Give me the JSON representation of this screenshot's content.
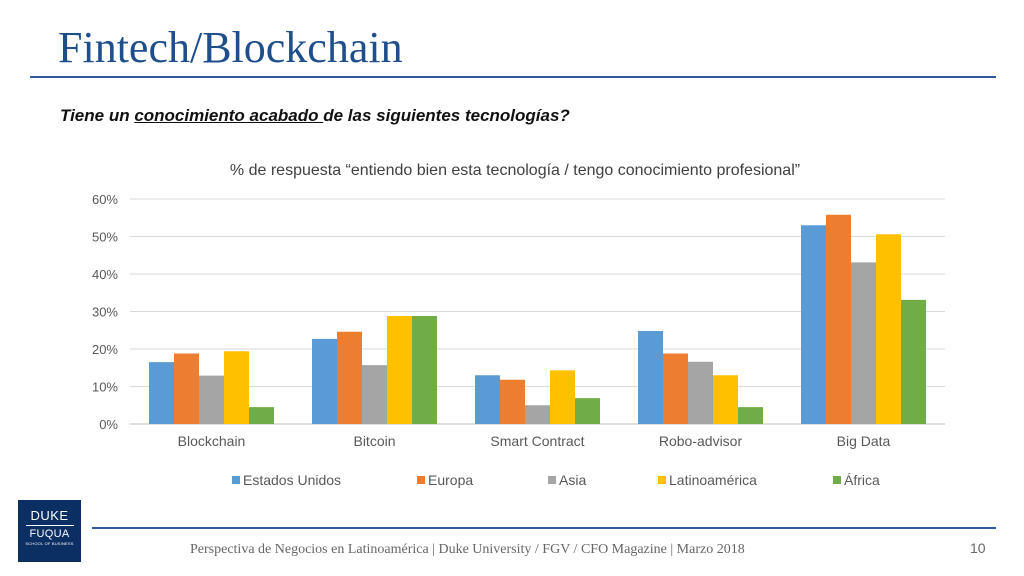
{
  "slide": {
    "title": "Fintech/Blockchain",
    "question_before": "Tiene un ",
    "question_underlined": "conocimiento acabado ",
    "question_after": "de las siguientes tecnologías?"
  },
  "chart_data": {
    "type": "bar",
    "title": "% de respuesta “entiendo bien esta tecnología / tengo conocimiento profesional”",
    "categories": [
      "Blockchain",
      "Bitcoin",
      "Smart Contract",
      "Robo-advisor",
      "Big Data"
    ],
    "series": [
      {
        "name": "Estados Unidos",
        "color": "#5b9bd5",
        "values": [
          16.5,
          22.7,
          13.0,
          24.8,
          53.0
        ]
      },
      {
        "name": "Europa",
        "color": "#ed7d31",
        "values": [
          18.8,
          24.6,
          11.8,
          18.8,
          55.8
        ]
      },
      {
        "name": "Asia",
        "color": "#a5a5a5",
        "values": [
          12.9,
          15.7,
          5.0,
          16.6,
          43.1
        ]
      },
      {
        "name": "Latinoamérica",
        "color": "#ffc000",
        "values": [
          19.4,
          28.8,
          14.3,
          13.0,
          50.6
        ]
      },
      {
        "name": "África",
        "color": "#70ad47",
        "values": [
          4.5,
          28.8,
          6.9,
          4.5,
          33.1
        ]
      }
    ],
    "y_ticks": [
      "0%",
      "10%",
      "20%",
      "30%",
      "40%",
      "50%",
      "60%"
    ],
    "ylim": [
      0,
      60
    ],
    "grid": true,
    "legend_position": "bottom"
  },
  "footer": {
    "text": "Perspectiva de Negocios en Latinoamérica | Duke University / FGV / CFO Magazine | Marzo 2018",
    "page_number": "10"
  },
  "logo": {
    "line1": "DUKE",
    "line2": "FUQUA",
    "line3": "SCHOOL OF BUSINESS"
  }
}
